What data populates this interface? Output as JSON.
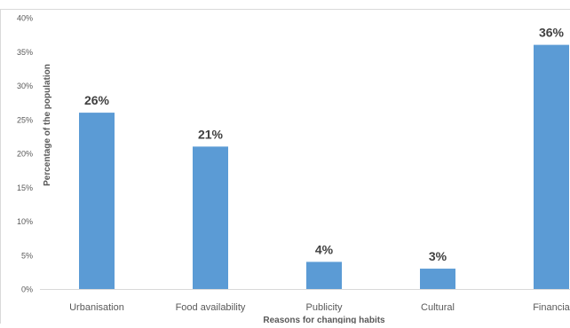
{
  "chart_data": {
    "type": "bar",
    "title": "",
    "xlabel": "Reasons for changing habits",
    "ylabel": "Percentage of the population",
    "categories": [
      "Urbanisation",
      "Food availability",
      "Publicity",
      "Cultural",
      "Financia"
    ],
    "values": [
      26,
      21,
      4,
      3,
      36
    ],
    "data_labels": [
      "26%",
      "21%",
      "4%",
      "3%",
      "36%"
    ],
    "ylim": [
      0,
      40
    ],
    "yticks": [
      0,
      5,
      10,
      15,
      20,
      25,
      30,
      35,
      40
    ],
    "ytick_labels": [
      "0%",
      "5%",
      "10%",
      "15%",
      "20%",
      "25%",
      "30%",
      "35%",
      "40%"
    ],
    "grid": false,
    "legend": "none",
    "bar_color": "#5b9bd5",
    "axis_color": "#d9d9d9",
    "text_color": "#595959",
    "label_color": "#404040"
  }
}
